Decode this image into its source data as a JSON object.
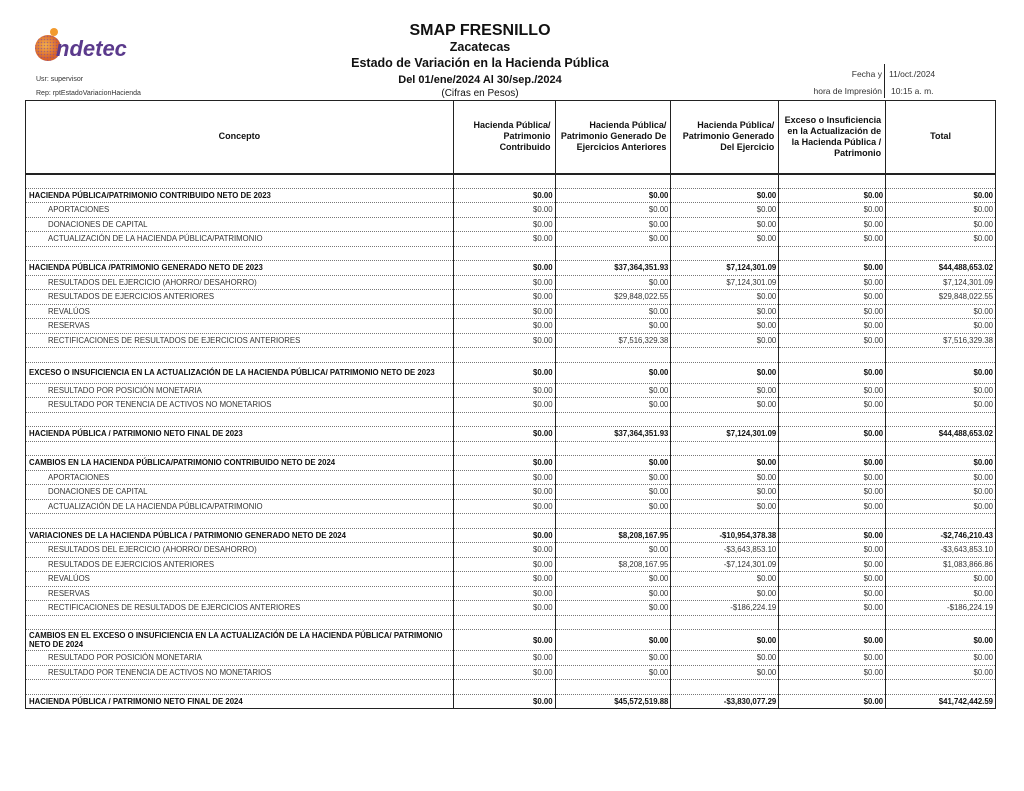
{
  "logo": {
    "text": "indetec"
  },
  "header": {
    "entity": "SMAP FRESNILLO",
    "state": "Zacatecas",
    "report_title": "Estado de Variación en la Hacienda Pública",
    "period": "Del 01/ene/2024 Al 30/sep./2024",
    "units": "(Cifras en Pesos)",
    "user": "Usr: supervisor",
    "report_id": "Rep: rptEstadoVariacionHacienda",
    "print_date_label": "Fecha y",
    "print_date": "11/oct./2024",
    "print_time_label": "hora de Impresión",
    "print_time": "10:15 a. m."
  },
  "columns": [
    "Concepto",
    "Hacienda Pública/ Patrimonio Contribuido",
    "Hacienda Pública/ Patrimonio Generado De Ejercicios Anteriores",
    "Hacienda Pública/ Patrimonio Generado Del Ejercicio",
    "Exceso o Insuficiencia en la Actualización de la Hacienda Pública / Patrimonio",
    "Total"
  ],
  "sections": [
    {
      "title": [
        "HACIENDA PÚBLICA/PATRIMONIO CONTRIBUIDO NETO DE 2023",
        "$0.00",
        "$0.00",
        "$0.00",
        "$0.00",
        "$0.00"
      ],
      "items": [
        [
          "APORTACIONES",
          "$0.00",
          "$0.00",
          "$0.00",
          "$0.00",
          "$0.00"
        ],
        [
          "DONACIONES DE CAPITAL",
          "$0.00",
          "$0.00",
          "$0.00",
          "$0.00",
          "$0.00"
        ],
        [
          "ACTUALIZACIÓN DE LA HACIENDA PÚBLICA/PATRIMONIO",
          "$0.00",
          "$0.00",
          "$0.00",
          "$0.00",
          "$0.00"
        ]
      ]
    },
    {
      "title": [
        "HACIENDA PÚBLICA /PATRIMONIO GENERADO NETO DE 2023",
        "$0.00",
        "$37,364,351.93",
        "$7,124,301.09",
        "$0.00",
        "$44,488,653.02"
      ],
      "items": [
        [
          "RESULTADOS DEL EJERCICIO (AHORRO/ DESAHORRO)",
          "$0.00",
          "$0.00",
          "$7,124,301.09",
          "$0.00",
          "$7,124,301.09"
        ],
        [
          "RESULTADOS DE EJERCICIOS ANTERIORES",
          "$0.00",
          "$29,848,022.55",
          "$0.00",
          "$0.00",
          "$29,848,022.55"
        ],
        [
          "REVALÚOS",
          "$0.00",
          "$0.00",
          "$0.00",
          "$0.00",
          "$0.00"
        ],
        [
          "RESERVAS",
          "$0.00",
          "$0.00",
          "$0.00",
          "$0.00",
          "$0.00"
        ],
        [
          "RECTIFICACIONES DE RESULTADOS DE EJERCICIOS ANTERIORES",
          "$0.00",
          "$7,516,329.38",
          "$0.00",
          "$0.00",
          "$7,516,329.38"
        ]
      ]
    },
    {
      "tall": true,
      "title": [
        "EXCESO O INSUFICIENCIA EN LA ACTUALIZACIÓN DE LA HACIENDA PÚBLICA/ PATRIMONIO NETO DE 2023",
        "$0.00",
        "$0.00",
        "$0.00",
        "$0.00",
        "$0.00"
      ],
      "items": [
        [
          "RESULTADO POR POSICIÓN MONETARIA",
          "$0.00",
          "$0.00",
          "$0.00",
          "$0.00",
          "$0.00"
        ],
        [
          "RESULTADO POR TENENCIA DE ACTIVOS NO MONETARIOS",
          "$0.00",
          "$0.00",
          "$0.00",
          "$0.00",
          "$0.00"
        ]
      ]
    },
    {
      "title": [
        "HACIENDA PÚBLICA / PATRIMONIO  NETO  FINAL DE 2023",
        "$0.00",
        "$37,364,351.93",
        "$7,124,301.09",
        "$0.00",
        "$44,488,653.02"
      ],
      "items": []
    },
    {
      "title": [
        "CAMBIOS EN LA HACIENDA PÚBLICA/PATRIMONIO CONTRIBUIDO NETO DE 2024",
        "$0.00",
        "$0.00",
        "$0.00",
        "$0.00",
        "$0.00"
      ],
      "items": [
        [
          "APORTACIONES",
          "$0.00",
          "$0.00",
          "$0.00",
          "$0.00",
          "$0.00"
        ],
        [
          "DONACIONES DE CAPITAL",
          "$0.00",
          "$0.00",
          "$0.00",
          "$0.00",
          "$0.00"
        ],
        [
          "ACTUALIZACIÓN DE LA HACIENDA PÚBLICA/PATRIMONIO",
          "$0.00",
          "$0.00",
          "$0.00",
          "$0.00",
          "$0.00"
        ]
      ]
    },
    {
      "title": [
        "VARIACIONES DE LA HACIENDA PÚBLICA / PATRIMONIO GENERADO NETO DE 2024",
        "$0.00",
        "$8,208,167.95",
        "-$10,954,378.38",
        "$0.00",
        "-$2,746,210.43"
      ],
      "items": [
        [
          "RESULTADOS DEL EJERCICIO (AHORRO/ DESAHORRO)",
          "$0.00",
          "$0.00",
          "-$3,643,853.10",
          "$0.00",
          "-$3,643,853.10"
        ],
        [
          "RESULTADOS DE EJERCICIOS ANTERIORES",
          "$0.00",
          "$8,208,167.95",
          "-$7,124,301.09",
          "$0.00",
          "$1,083,866.86"
        ],
        [
          "REVALÚOS",
          "$0.00",
          "$0.00",
          "$0.00",
          "$0.00",
          "$0.00"
        ],
        [
          "RESERVAS",
          "$0.00",
          "$0.00",
          "$0.00",
          "$0.00",
          "$0.00"
        ],
        [
          "RECTIFICACIONES DE RESULTADOS DE EJERCICIOS ANTERIORES",
          "$0.00",
          "$0.00",
          "-$186,224.19",
          "$0.00",
          "-$186,224.19"
        ]
      ]
    },
    {
      "tall": true,
      "title": [
        "CAMBIOS EN EL EXCESO O INSUFICIENCIA EN LA ACTUALIZACIÓN DE LA HACIENDA PÚBLICA/ PATRIMONIO NETO DE 2024",
        "$0.00",
        "$0.00",
        "$0.00",
        "$0.00",
        "$0.00"
      ],
      "items": [
        [
          "RESULTADO POR POSICIÓN MONETARIA",
          "$0.00",
          "$0.00",
          "$0.00",
          "$0.00",
          "$0.00"
        ],
        [
          "RESULTADO POR TENENCIA DE ACTIVOS NO MONETARIOS",
          "$0.00",
          "$0.00",
          "$0.00",
          "$0.00",
          "$0.00"
        ]
      ]
    },
    {
      "title": [
        "HACIENDA PÚBLICA / PATRIMONIO NETO FINAL DE 2024",
        "$0.00",
        "$45,572,519.88",
        "-$3,830,077.29",
        "$0.00",
        "$41,742,442.59"
      ],
      "items": []
    }
  ]
}
